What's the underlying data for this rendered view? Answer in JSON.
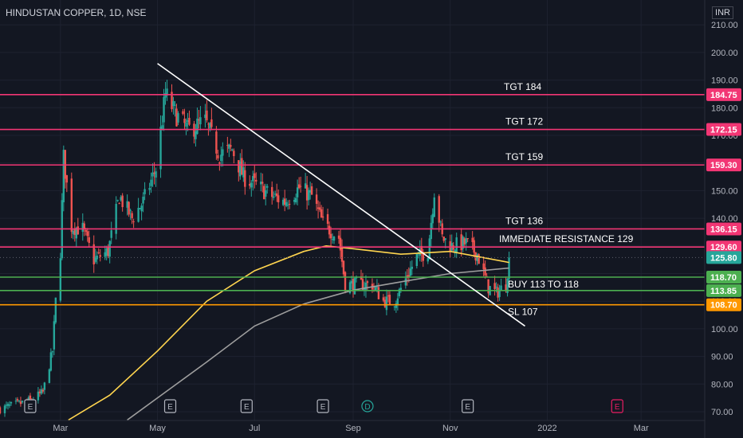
{
  "header": {
    "title": "HINDUSTAN COPPER, 1D, NSE",
    "currency": "INR"
  },
  "chart_data": {
    "type": "candlestick",
    "ylim": [
      67,
      213
    ],
    "y_ticks": [
      70,
      80,
      90,
      100,
      110,
      120,
      130,
      140,
      150,
      160,
      170,
      180,
      190,
      200,
      210
    ],
    "y_tick_labels": [
      "70.00",
      "80.00",
      "90.00",
      "100.00",
      "110.00",
      "120.00",
      "130.00",
      "140.00",
      "150.00",
      "160.00",
      "170.00",
      "180.00",
      "190.00",
      "200.00",
      "210.00"
    ],
    "x_labels": [
      {
        "label": "Mar",
        "date": "2021-03-01"
      },
      {
        "label": "May",
        "date": "2021-05-01"
      },
      {
        "label": "Jul",
        "date": "2021-07-01"
      },
      {
        "label": "Sep",
        "date": "2021-09-01"
      },
      {
        "label": "Nov",
        "date": "2021-11-01"
      },
      {
        "label": "2022",
        "date": "2022-01-01"
      },
      {
        "label": "Mar",
        "date": "2022-03-01"
      }
    ],
    "xlim": [
      "2021-01-22",
      "2022-04-10"
    ],
    "price_anchors": [
      [
        "2021-01-22",
        71
      ],
      [
        "2021-02-10",
        74
      ],
      [
        "2021-02-18",
        77
      ],
      [
        "2021-02-24",
        92
      ],
      [
        "2021-02-26",
        110
      ],
      [
        "2021-03-01",
        128
      ],
      [
        "2021-03-03",
        162
      ],
      [
        "2021-03-08",
        137
      ],
      [
        "2021-03-15",
        136
      ],
      [
        "2021-03-22",
        125
      ],
      [
        "2021-03-31",
        128
      ],
      [
        "2021-04-07",
        148
      ],
      [
        "2021-04-15",
        140
      ],
      [
        "2021-04-22",
        146
      ],
      [
        "2021-04-30",
        158
      ],
      [
        "2021-05-06",
        185
      ],
      [
        "2021-05-12",
        178
      ],
      [
        "2021-05-20",
        172
      ],
      [
        "2021-05-31",
        175
      ],
      [
        "2021-06-09",
        163
      ],
      [
        "2021-06-17",
        165
      ],
      [
        "2021-06-24",
        155
      ],
      [
        "2021-07-02",
        152
      ],
      [
        "2021-07-12",
        148
      ],
      [
        "2021-07-20",
        146
      ],
      [
        "2021-07-29",
        151
      ],
      [
        "2021-08-06",
        148
      ],
      [
        "2021-08-13",
        138
      ],
      [
        "2021-08-23",
        133
      ],
      [
        "2021-08-27",
        116
      ],
      [
        "2021-09-06",
        116
      ],
      [
        "2021-09-13",
        116
      ],
      [
        "2021-09-20",
        110
      ],
      [
        "2021-09-27",
        110
      ],
      [
        "2021-10-04",
        118
      ],
      [
        "2021-10-11",
        126
      ],
      [
        "2021-10-18",
        128
      ],
      [
        "2021-10-22",
        150
      ],
      [
        "2021-10-27",
        133
      ],
      [
        "2021-11-02",
        130
      ],
      [
        "2021-11-11",
        131
      ],
      [
        "2021-11-18",
        127
      ],
      [
        "2021-11-25",
        115
      ],
      [
        "2021-11-30",
        113
      ],
      [
        "2021-12-06",
        116
      ],
      [
        "2021-12-08",
        125.8
      ]
    ],
    "candle_range": {
      "from": "2021-01-22",
      "to": "2021-12-08"
    },
    "levels": [
      {
        "value": 184.75,
        "label": "TGT 184",
        "tag": "184.75",
        "color": "#f23674"
      },
      {
        "value": 172.15,
        "label": "TGT 172",
        "tag": "172.15",
        "color": "#f23674"
      },
      {
        "value": 159.3,
        "label": "TGT 159",
        "tag": "159.30",
        "color": "#f23674"
      },
      {
        "value": 136.15,
        "label": "TGT 136",
        "tag": "136.15",
        "color": "#f23674"
      },
      {
        "value": 129.6,
        "label": "IMMEDIATE RESISTANCE 129",
        "tag": "129.60",
        "color": "#f23674"
      },
      {
        "value": 118.7,
        "label": "BUY 113 TO 118",
        "tag": "118.70",
        "color": "#4caf50"
      },
      {
        "value": 113.85,
        "label": "",
        "tag": "113.85",
        "color": "#4caf50"
      },
      {
        "value": 108.7,
        "label": "SL 107",
        "tag": "108.70",
        "color": "#ff9800"
      }
    ],
    "last_price": {
      "value": 125.8,
      "tag": "125.80",
      "color": "#26a69a"
    },
    "trendline": {
      "from": [
        "2021-05-01",
        196
      ],
      "to": [
        "2021-12-18",
        101
      ],
      "color": "#ffffff"
    },
    "moving_averages": [
      {
        "color": "#ffd54f",
        "anchors": [
          [
            "2021-03-06",
            67
          ],
          [
            "2021-04-01",
            76
          ],
          [
            "2021-05-01",
            92
          ],
          [
            "2021-06-01",
            110
          ],
          [
            "2021-07-01",
            121
          ],
          [
            "2021-08-01",
            128
          ],
          [
            "2021-08-15",
            130
          ],
          [
            "2021-09-01",
            129
          ],
          [
            "2021-10-01",
            127
          ],
          [
            "2021-11-01",
            128
          ],
          [
            "2021-12-08",
            124
          ]
        ]
      },
      {
        "color": "#9e9e9e",
        "anchors": [
          [
            "2021-04-12",
            67
          ],
          [
            "2021-05-01",
            75
          ],
          [
            "2021-06-01",
            88
          ],
          [
            "2021-07-01",
            101
          ],
          [
            "2021-08-01",
            109
          ],
          [
            "2021-09-01",
            114
          ],
          [
            "2021-10-01",
            117
          ],
          [
            "2021-11-01",
            120
          ],
          [
            "2021-12-08",
            122
          ]
        ]
      }
    ],
    "events": [
      {
        "date": "2021-02-10",
        "letter": "E",
        "color": "#b2b5be"
      },
      {
        "date": "2021-05-09",
        "letter": "E",
        "color": "#b2b5be"
      },
      {
        "date": "2021-06-26",
        "letter": "E",
        "color": "#b2b5be"
      },
      {
        "date": "2021-08-13",
        "letter": "E",
        "color": "#b2b5be"
      },
      {
        "date": "2021-09-10",
        "letter": "D",
        "color": "#26a69a",
        "round": true
      },
      {
        "date": "2021-11-12",
        "letter": "E",
        "color": "#b2b5be"
      },
      {
        "date": "2022-02-14",
        "letter": "E",
        "color": "#e91e63"
      }
    ],
    "colors": {
      "up": "#26a69a",
      "down": "#ef5350",
      "grid": "#1e2230",
      "axis_text": "#b2b5be"
    }
  }
}
